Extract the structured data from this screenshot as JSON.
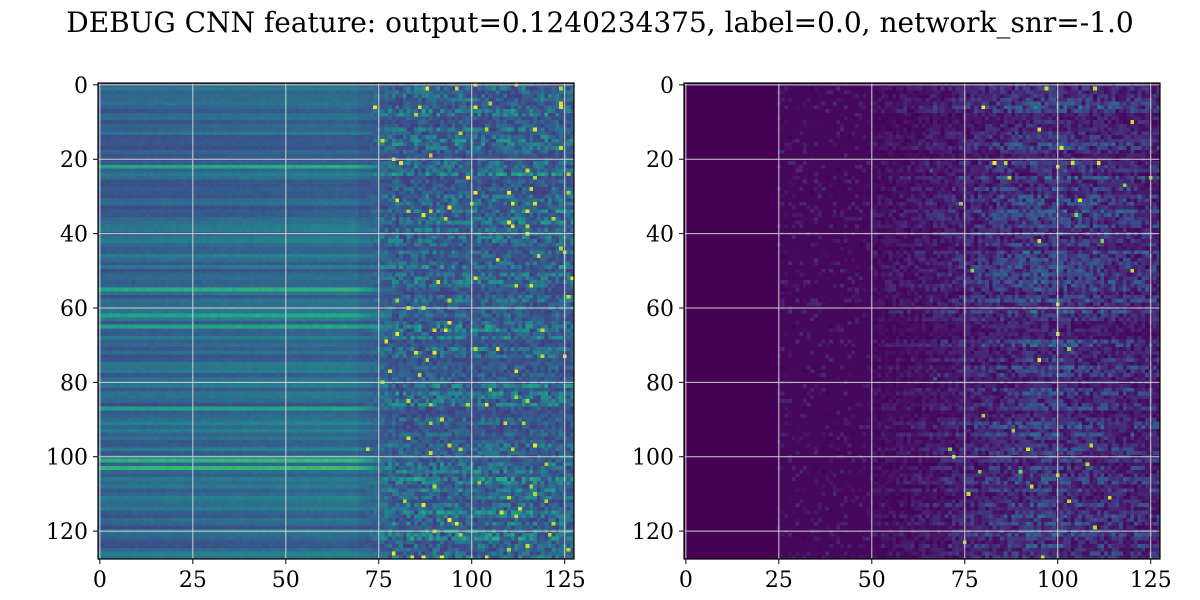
{
  "figure": {
    "title": "DEBUG CNN feature: output=0.1240234375, label=0.0, network_snr=-1.0"
  },
  "chart_data": [
    {
      "type": "heatmap",
      "title": "",
      "xlabel": "",
      "ylabel": "",
      "rows": 128,
      "cols": 128,
      "colormap": "viridis",
      "xlim": [
        0,
        127
      ],
      "ylim": [
        127,
        0
      ],
      "xticks": [
        0,
        25,
        50,
        75,
        100,
        125
      ],
      "yticks": [
        0,
        20,
        40,
        60,
        80,
        100,
        120
      ],
      "grid": true,
      "description_of_values": "row-wise horizontal banding (uniform teal/blue per row) for columns 0-70, becoming noisy speckled with bright yellow-green spots for columns 75-127"
    },
    {
      "type": "heatmap",
      "title": "",
      "xlabel": "",
      "ylabel": "",
      "rows": 128,
      "cols": 128,
      "colormap": "viridis",
      "xlim": [
        0,
        127
      ],
      "ylim": [
        127,
        0
      ],
      "xticks": [
        0,
        25,
        50,
        75,
        100,
        125
      ],
      "yticks": [
        0,
        20,
        40,
        60,
        80,
        100,
        120
      ],
      "grid": true,
      "description_of_values": "near-zero (dark purple) for columns 0-25, faint streaks from 25-50, increasing horizontal streaks with bright spots around columns 85-110"
    }
  ],
  "colors": {
    "background": "#ffffff",
    "axis": "#000000",
    "grid": "#d0d0d0"
  }
}
